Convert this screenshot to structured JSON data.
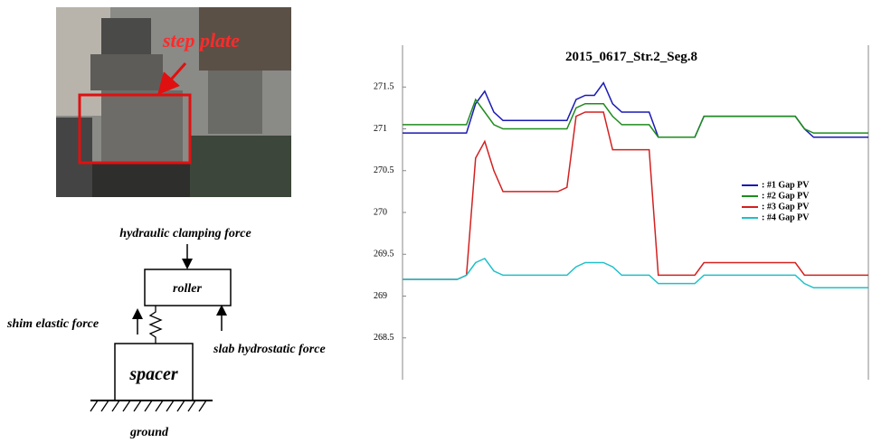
{
  "photo": {
    "label": "step plate"
  },
  "diagram": {
    "top_force": "hydraulic clamping force",
    "roller": "roller",
    "left_force": "shim elastic force",
    "right_force": "slab hydrostatic force",
    "spacer": "spacer",
    "ground": "ground"
  },
  "chart_data": {
    "type": "line",
    "title": "2015_0617_Str.2_Seg.8",
    "categories": [
      null,
      null,
      null,
      null,
      null,
      null,
      null,
      null,
      null,
      null,
      null,
      null,
      null,
      null,
      null,
      null,
      null,
      null,
      null,
      null,
      null,
      null,
      null,
      null,
      null,
      null,
      null,
      null,
      null,
      null,
      null,
      null,
      null,
      null,
      null,
      null,
      null,
      null,
      null,
      null,
      null,
      null,
      null,
      null,
      null,
      null,
      null,
      null,
      null,
      null,
      null,
      null
    ],
    "ylim": [
      268,
      272
    ],
    "yticks": [
      268.5,
      269,
      269.5,
      270,
      270.5,
      271,
      271.5
    ],
    "grid": false,
    "series": [
      {
        "name": ": #1 Gap PV",
        "color": "#1a1ab4",
        "values": [
          270.95,
          270.95,
          270.95,
          270.95,
          270.95,
          270.95,
          270.95,
          270.95,
          271.3,
          271.45,
          271.2,
          271.1,
          271.1,
          271.1,
          271.1,
          271.1,
          271.1,
          271.1,
          271.1,
          271.35,
          271.4,
          271.4,
          271.55,
          271.3,
          271.2,
          271.2,
          271.2,
          271.2,
          270.9,
          270.9,
          270.9,
          270.9,
          270.9,
          271.15,
          271.15,
          271.15,
          271.15,
          271.15,
          271.15,
          271.15,
          271.15,
          271.15,
          271.15,
          271.15,
          271.0,
          270.9,
          270.9,
          270.9,
          270.9,
          270.9,
          270.9,
          270.9
        ]
      },
      {
        "name": ": #2 Gap PV",
        "color": "#1e8c1e",
        "values": [
          271.05,
          271.05,
          271.05,
          271.05,
          271.05,
          271.05,
          271.05,
          271.05,
          271.35,
          271.2,
          271.05,
          271.0,
          271.0,
          271.0,
          271.0,
          271.0,
          271.0,
          271.0,
          271.0,
          271.25,
          271.3,
          271.3,
          271.3,
          271.15,
          271.05,
          271.05,
          271.05,
          271.05,
          270.9,
          270.9,
          270.9,
          270.9,
          270.9,
          271.15,
          271.15,
          271.15,
          271.15,
          271.15,
          271.15,
          271.15,
          271.15,
          271.15,
          271.15,
          271.15,
          271.0,
          270.95,
          270.95,
          270.95,
          270.95,
          270.95,
          270.95,
          270.95
        ]
      },
      {
        "name": ": #3 Gap PV",
        "color": "#d42020",
        "values": [
          269.2,
          269.2,
          269.2,
          269.2,
          269.2,
          269.2,
          269.2,
          269.25,
          270.65,
          270.85,
          270.5,
          270.25,
          270.25,
          270.25,
          270.25,
          270.25,
          270.25,
          270.25,
          270.3,
          271.15,
          271.2,
          271.2,
          271.2,
          270.75,
          270.75,
          270.75,
          270.75,
          270.75,
          269.25,
          269.25,
          269.25,
          269.25,
          269.25,
          269.4,
          269.4,
          269.4,
          269.4,
          269.4,
          269.4,
          269.4,
          269.4,
          269.4,
          269.4,
          269.4,
          269.25,
          269.25,
          269.25,
          269.25,
          269.25,
          269.25,
          269.25,
          269.25
        ]
      },
      {
        "name": ": #4 Gap PV",
        "color": "#20c0c8",
        "values": [
          269.2,
          269.2,
          269.2,
          269.2,
          269.2,
          269.2,
          269.2,
          269.25,
          269.4,
          269.45,
          269.3,
          269.25,
          269.25,
          269.25,
          269.25,
          269.25,
          269.25,
          269.25,
          269.25,
          269.35,
          269.4,
          269.4,
          269.4,
          269.35,
          269.25,
          269.25,
          269.25,
          269.25,
          269.15,
          269.15,
          269.15,
          269.15,
          269.15,
          269.25,
          269.25,
          269.25,
          269.25,
          269.25,
          269.25,
          269.25,
          269.25,
          269.25,
          269.25,
          269.25,
          269.15,
          269.1,
          269.1,
          269.1,
          269.1,
          269.1,
          269.1,
          269.1
        ]
      }
    ]
  }
}
